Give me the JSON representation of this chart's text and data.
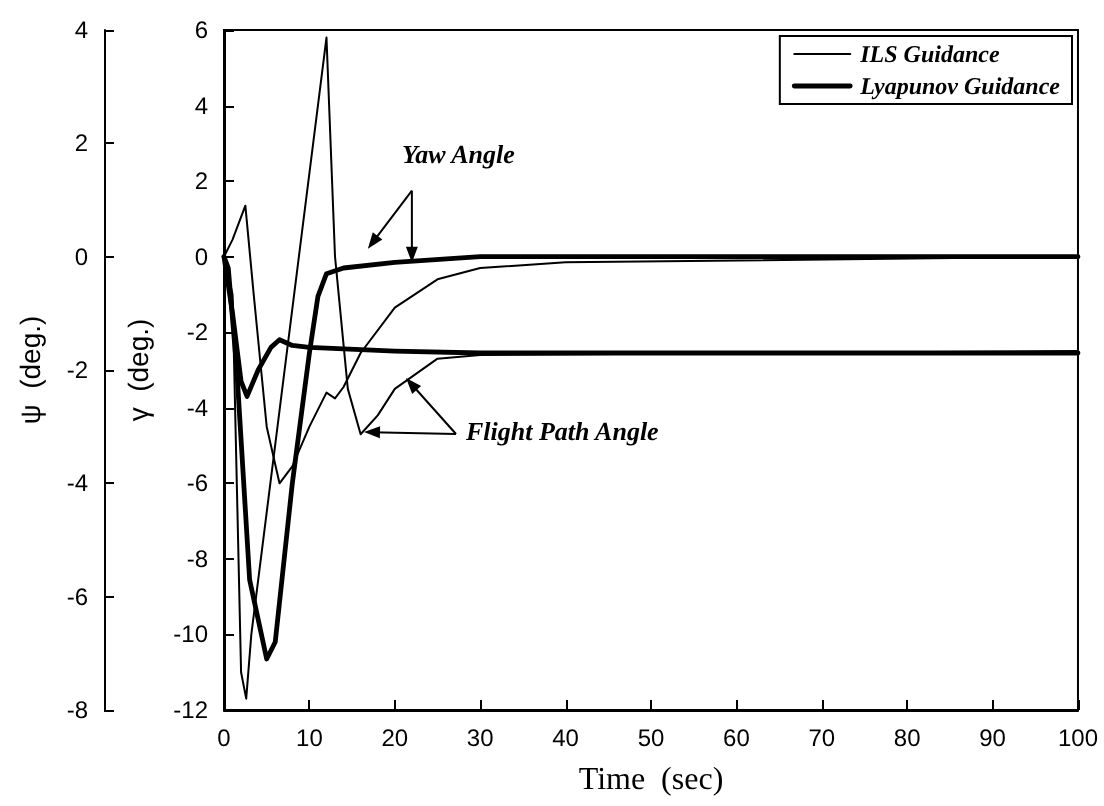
{
  "chart_data": {
    "type": "line",
    "xlabel": "Time  (sec)",
    "ylabel": "ψ  (deg.)",
    "y2label": "γ  (deg.)",
    "xlim": [
      0,
      100
    ],
    "xticks": [
      0,
      10,
      20,
      30,
      40,
      50,
      60,
      70,
      80,
      90,
      100
    ],
    "ylim": [
      -8,
      4
    ],
    "yticks": [
      -8,
      -6,
      -4,
      -2,
      0,
      2,
      4
    ],
    "y2lim": [
      -12,
      6
    ],
    "y2ticks": [
      -12,
      -10,
      -8,
      -6,
      -4,
      -2,
      0,
      2,
      4,
      6
    ],
    "legend": "top right",
    "grid": false,
    "marker": "none",
    "line_style": "solid",
    "annotations": [
      {
        "text": "Yaw Angle",
        "x": 22,
        "y": 0
      },
      "Flight Path Angle"
    ],
    "series": [
      {
        "name": "ILS Guidance",
        "color": "#000000",
        "x": [
          0,
          1,
          2.5,
          3.5,
          5,
          6.5,
          8,
          10,
          12,
          13,
          14,
          16,
          20,
          25,
          30,
          40,
          100
        ],
        "values": [
          0,
          0.3,
          0.9,
          -0.7,
          -3,
          -4,
          -3.7,
          -3,
          -2.4,
          -2.5,
          -2.3,
          -1.7,
          -0.9,
          -0.4,
          -0.2,
          -0.1,
          0
        ]
      },
      {
        "name": "Lyapunov Guidance",
        "color": "#000000",
        "x": [
          0,
          0.5,
          1.5,
          3,
          5,
          6,
          8,
          10,
          11,
          12,
          14,
          20,
          30,
          100
        ],
        "values": [
          0,
          -0.2,
          -2,
          -5.7,
          -7.1,
          -6.8,
          -4,
          -1.7,
          -0.7,
          -0.3,
          -0.2,
          -0.1,
          0,
          0
        ]
      },
      {
        "color": "#000000",
        "axis": "y2",
        "x": [
          0,
          1,
          2,
          2.6,
          3.2,
          12,
          13,
          14.5,
          16,
          18,
          20,
          25,
          30,
          100
        ],
        "values": [
          0,
          -1,
          -11,
          -11.7,
          -10,
          5.8,
          0,
          -3.5,
          -4.7,
          -4.2,
          -3.5,
          -2.7,
          -2.6,
          -2.5
        ]
      },
      {
        "color": "#000000",
        "axis": "y2",
        "x": [
          0,
          1,
          2,
          2.7,
          4,
          5.5,
          6.5,
          8,
          10,
          20,
          30,
          100
        ],
        "values": [
          0,
          -1.5,
          -3.3,
          -3.7,
          -3,
          -2.4,
          -2.2,
          -2.35,
          -2.4,
          -2.5,
          -2.55,
          -2.55
        ]
      }
    ]
  }
}
